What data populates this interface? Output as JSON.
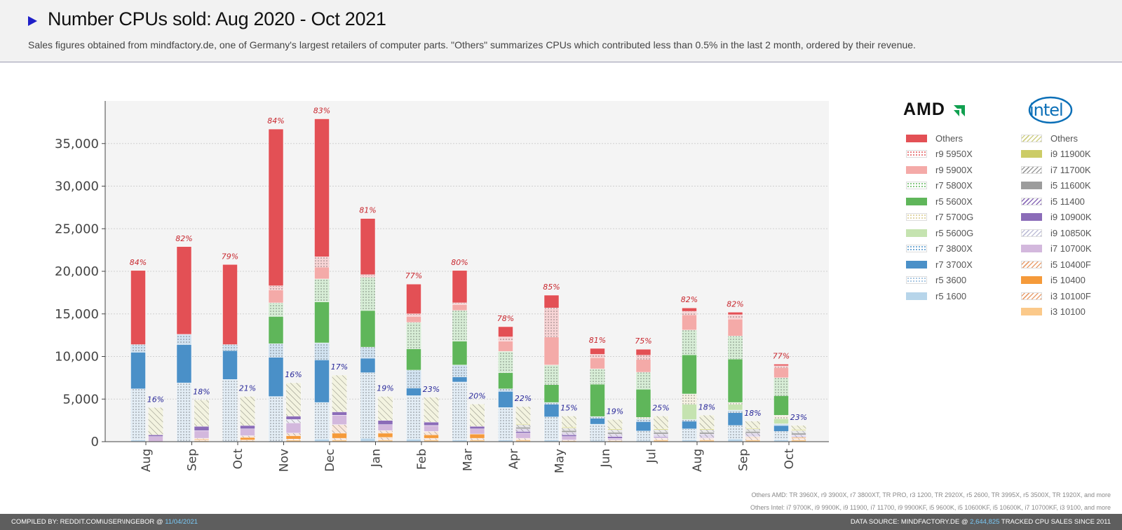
{
  "title": "Number CPUs sold: Aug 2020 - Oct 2021",
  "subtitle": "Sales figures obtained from mindfactory.de, one of Germany's largest retailers of computer parts. \"Others\" summarizes CPUs which contributed less than 0.5% in the last 2 month, ordered by their revenue.",
  "logos": {
    "amd": "AMD",
    "intel": "intel"
  },
  "notes": {
    "amd": "Others AMD: TR 3960X, r9 3900X, r7 3800XT, TR PRO, r3 1200, TR 2920X, r5 2600, TR 3995X, r5 3500X, TR 1920X, and more",
    "intel": "Others Intel: i7 9700K, i9 9900K, i9 11900, i7 11700, i9 9900KF, i5 9600K, i5 10600KF, i5 10600K, i7 10700KF, i3 9100, and more"
  },
  "footer": {
    "left_prefix": "COMPILED BY: REDDIT.COM\\USER\\INGEBOR @ ",
    "left_date": "11/04/2021",
    "right_prefix": "DATA SOURCE: MINDFACTORY.DE @ ",
    "right_count": "2,644,825",
    "right_suffix": " TRACKED CPU SALES SINCE 2011"
  },
  "chart_data": {
    "type": "bar",
    "stacked": true,
    "grouped_by_vendor": true,
    "categories": [
      "Aug",
      "Sep",
      "Oct",
      "Nov",
      "Dec",
      "Jan",
      "Feb",
      "Mar",
      "Apr",
      "May",
      "Jun",
      "Jul",
      "Aug",
      "Sep",
      "Oct"
    ],
    "ylim": [
      0,
      40000
    ],
    "yticks": [
      0,
      5000,
      10000,
      15000,
      20000,
      25000,
      30000,
      35000
    ],
    "ytick_labels": [
      "0",
      "5,000",
      "10,000",
      "15,000",
      "20,000",
      "25,000",
      "30,000",
      "35,000"
    ],
    "grid": true,
    "legend_position": "right",
    "amd": {
      "share_labels": [
        "84%",
        "82%",
        "79%",
        "84%",
        "83%",
        "81%",
        "77%",
        "80%",
        "78%",
        "85%",
        "81%",
        "75%",
        "82%",
        "82%",
        "77%"
      ],
      "series": [
        {
          "name": "r5 1600",
          "color": "#b7d5ea",
          "pattern": "solid",
          "values": [
            200,
            100,
            100,
            100,
            300,
            400,
            300,
            200,
            200,
            200,
            150,
            150,
            200,
            300,
            200
          ]
        },
        {
          "name": "r5 3600",
          "color": "#8fb6d8",
          "pattern": "dots",
          "values": [
            6000,
            6800,
            7200,
            5200,
            4300,
            7700,
            5100,
            6800,
            3800,
            2700,
            1900,
            1100,
            1300,
            1600,
            1000
          ]
        },
        {
          "name": "r7 3700X",
          "color": "#4a90c8",
          "pattern": "solid",
          "values": [
            4300,
            4500,
            3400,
            4600,
            5000,
            1700,
            900,
            600,
            1900,
            1500,
            700,
            1100,
            900,
            1500,
            700
          ]
        },
        {
          "name": "r7 3800X",
          "color": "#4a90c8",
          "pattern": "dots",
          "values": [
            900,
            1200,
            700,
            1600,
            2000,
            1300,
            2100,
            1400,
            300,
            200,
            200,
            300,
            200,
            300,
            200
          ]
        },
        {
          "name": "r5 5600G",
          "color": "#c5e3b0",
          "pattern": "solid",
          "values": [
            0,
            0,
            0,
            0,
            0,
            0,
            0,
            0,
            0,
            0,
            0,
            100,
            1800,
            700,
            600
          ]
        },
        {
          "name": "r7 5700G",
          "color": "#d8c88a",
          "pattern": "dots",
          "values": [
            0,
            0,
            0,
            0,
            0,
            0,
            0,
            0,
            0,
            0,
            0,
            100,
            1200,
            200,
            400
          ]
        },
        {
          "name": "r5 5600X",
          "color": "#5fb65a",
          "pattern": "solid",
          "values": [
            0,
            0,
            0,
            3200,
            4800,
            4300,
            2500,
            2800,
            1900,
            2100,
            3800,
            3300,
            4600,
            5100,
            2300
          ]
        },
        {
          "name": "r7 5800X",
          "color": "#5fb65a",
          "pattern": "dots",
          "values": [
            0,
            0,
            0,
            1600,
            2700,
            3900,
            3100,
            3600,
            2500,
            2300,
            1800,
            2000,
            2900,
            2700,
            2100
          ]
        },
        {
          "name": "r9 5900X",
          "color": "#f4aaa8",
          "pattern": "solid",
          "values": [
            0,
            0,
            0,
            1500,
            1400,
            0,
            700,
            700,
            1200,
            3300,
            1300,
            1500,
            1800,
            2000,
            1200
          ]
        },
        {
          "name": "r9 5950X",
          "color": "#e05558",
          "pattern": "dots",
          "values": [
            0,
            0,
            0,
            500,
            1200,
            300,
            300,
            200,
            500,
            3400,
            400,
            500,
            400,
            500,
            200
          ]
        },
        {
          "name": "Others",
          "color": "#e35055",
          "pattern": "solid",
          "values": [
            8700,
            10300,
            9400,
            18400,
            16200,
            6600,
            3500,
            3800,
            1200,
            1500,
            700,
            700,
            400,
            300,
            200
          ]
        }
      ]
    },
    "intel": {
      "share_labels": [
        "16%",
        "18%",
        "21%",
        "16%",
        "17%",
        "19%",
        "23%",
        "20%",
        "22%",
        "15%",
        "19%",
        "25%",
        "18%",
        "18%",
        "23%"
      ],
      "series": [
        {
          "name": "i3 10100",
          "color": "#fbc98a",
          "pattern": "solid",
          "values": [
            0,
            100,
            100,
            200,
            200,
            200,
            200,
            200,
            200,
            100,
            100,
            200,
            200,
            200,
            200
          ]
        },
        {
          "name": "i3 10100F",
          "color": "#e8a070",
          "pattern": "hatch",
          "values": [
            0,
            100,
            100,
            100,
            200,
            300,
            200,
            200,
            200,
            100,
            100,
            200,
            200,
            200,
            200
          ]
        },
        {
          "name": "i5 10400",
          "color": "#f59a3a",
          "pattern": "solid",
          "values": [
            0,
            100,
            300,
            400,
            600,
            500,
            400,
            500,
            0,
            0,
            0,
            0,
            0,
            0,
            100
          ]
        },
        {
          "name": "i5 10400F",
          "color": "#e8a070",
          "pattern": "hatch",
          "values": [
            0,
            100,
            200,
            300,
            1000,
            300,
            400,
            0,
            0,
            0,
            0,
            0,
            0,
            200,
            0
          ]
        },
        {
          "name": "i7 10700K",
          "color": "#d3b8dd",
          "pattern": "solid",
          "values": [
            600,
            900,
            800,
            1200,
            1100,
            700,
            700,
            600,
            600,
            400,
            200,
            100,
            100,
            0,
            0
          ]
        },
        {
          "name": "i9 10850K",
          "color": "#c0c0d8",
          "pattern": "hatch",
          "values": [
            0,
            0,
            0,
            400,
            0,
            0,
            0,
            0,
            0,
            0,
            0,
            0,
            0,
            0,
            0
          ]
        },
        {
          "name": "i9 10900K",
          "color": "#8b6cb8",
          "pattern": "solid",
          "values": [
            200,
            500,
            400,
            400,
            400,
            500,
            400,
            300,
            200,
            200,
            200,
            100,
            0,
            0,
            0
          ]
        },
        {
          "name": "i5 11400",
          "color": "#8b6cb8",
          "pattern": "hatch",
          "values": [
            0,
            0,
            0,
            0,
            0,
            0,
            0,
            0,
            300,
            300,
            300,
            300,
            400,
            400,
            300
          ]
        },
        {
          "name": "i5 11600K",
          "color": "#9c9c9c",
          "pattern": "solid",
          "values": [
            0,
            0,
            0,
            0,
            0,
            0,
            0,
            0,
            200,
            200,
            200,
            200,
            200,
            200,
            200
          ]
        },
        {
          "name": "i7 11700K",
          "color": "#9c9c9c",
          "pattern": "hatch",
          "values": [
            0,
            0,
            0,
            0,
            0,
            0,
            0,
            0,
            300,
            300,
            300,
            300,
            300,
            300,
            300
          ]
        },
        {
          "name": "i9 11900K",
          "color": "#cccc66",
          "pattern": "solid",
          "values": [
            0,
            0,
            0,
            0,
            0,
            0,
            0,
            0,
            100,
            100,
            100,
            100,
            100,
            100,
            100
          ]
        },
        {
          "name": "Others",
          "color": "#cfcf85",
          "pattern": "hatch",
          "values": [
            3200,
            3100,
            3400,
            3900,
            4300,
            2800,
            2900,
            2600,
            2000,
            1300,
            1100,
            1500,
            1600,
            800,
            500
          ]
        }
      ]
    }
  }
}
